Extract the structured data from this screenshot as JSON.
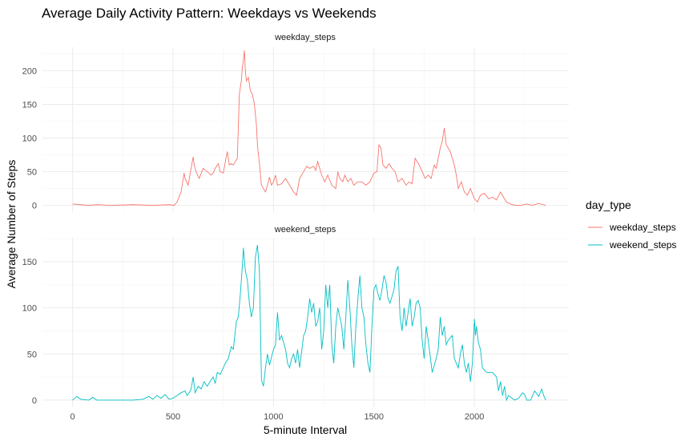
{
  "chart_data": {
    "type": "line",
    "title": "Average Daily Activity Pattern: Weekdays vs Weekends",
    "xlabel": "5-minute Interval",
    "ylabel": "Average Number of Steps",
    "xlim": [
      -150,
      2470
    ],
    "x_ticks": [
      0,
      500,
      1000,
      1500,
      2000
    ],
    "grid": true,
    "legend": {
      "title": "day_type",
      "position": "right",
      "items": [
        {
          "label": "weekday_steps",
          "color": "#F8766D"
        },
        {
          "label": "weekend_steps",
          "color": "#00BFC4"
        }
      ]
    },
    "panels": [
      {
        "strip": "weekday_steps",
        "color": "#F8766D",
        "ylim": [
          -10,
          235
        ],
        "y_ticks": [
          0,
          50,
          100,
          150,
          200
        ],
        "points": [
          [
            0,
            2
          ],
          [
            40,
            1
          ],
          [
            80,
            0
          ],
          [
            120,
            1
          ],
          [
            200,
            0
          ],
          [
            300,
            1
          ],
          [
            400,
            0
          ],
          [
            480,
            1
          ],
          [
            505,
            0
          ],
          [
            520,
            5
          ],
          [
            540,
            20
          ],
          [
            555,
            48
          ],
          [
            560,
            40
          ],
          [
            575,
            30
          ],
          [
            590,
            55
          ],
          [
            600,
            72
          ],
          [
            605,
            60
          ],
          [
            615,
            50
          ],
          [
            630,
            40
          ],
          [
            650,
            55
          ],
          [
            670,
            50
          ],
          [
            690,
            45
          ],
          [
            700,
            48
          ],
          [
            710,
            55
          ],
          [
            725,
            62
          ],
          [
            735,
            50
          ],
          [
            750,
            48
          ],
          [
            770,
            80
          ],
          [
            780,
            60
          ],
          [
            790,
            62
          ],
          [
            800,
            60
          ],
          [
            810,
            65
          ],
          [
            820,
            70
          ],
          [
            830,
            165
          ],
          [
            840,
            185
          ],
          [
            845,
            205
          ],
          [
            850,
            215
          ],
          [
            855,
            230
          ],
          [
            860,
            200
          ],
          [
            865,
            185
          ],
          [
            875,
            190
          ],
          [
            885,
            170
          ],
          [
            895,
            165
          ],
          [
            905,
            150
          ],
          [
            915,
            120
          ],
          [
            920,
            90
          ],
          [
            930,
            62
          ],
          [
            940,
            30
          ],
          [
            950,
            25
          ],
          [
            960,
            20
          ],
          [
            970,
            30
          ],
          [
            980,
            42
          ],
          [
            990,
            30
          ],
          [
            1000,
            35
          ],
          [
            1010,
            45
          ],
          [
            1020,
            30
          ],
          [
            1040,
            32
          ],
          [
            1060,
            40
          ],
          [
            1080,
            30
          ],
          [
            1100,
            20
          ],
          [
            1115,
            15
          ],
          [
            1130,
            40
          ],
          [
            1150,
            50
          ],
          [
            1165,
            58
          ],
          [
            1180,
            55
          ],
          [
            1200,
            58
          ],
          [
            1210,
            52
          ],
          [
            1220,
            65
          ],
          [
            1230,
            55
          ],
          [
            1240,
            45
          ],
          [
            1255,
            35
          ],
          [
            1270,
            45
          ],
          [
            1290,
            30
          ],
          [
            1310,
            25
          ],
          [
            1320,
            50
          ],
          [
            1330,
            40
          ],
          [
            1345,
            35
          ],
          [
            1355,
            45
          ],
          [
            1370,
            35
          ],
          [
            1385,
            40
          ],
          [
            1400,
            30
          ],
          [
            1420,
            35
          ],
          [
            1440,
            35
          ],
          [
            1460,
            30
          ],
          [
            1480,
            35
          ],
          [
            1500,
            48
          ],
          [
            1515,
            50
          ],
          [
            1525,
            90
          ],
          [
            1535,
            85
          ],
          [
            1545,
            60
          ],
          [
            1560,
            55
          ],
          [
            1575,
            62
          ],
          [
            1590,
            55
          ],
          [
            1605,
            50
          ],
          [
            1620,
            35
          ],
          [
            1640,
            40
          ],
          [
            1660,
            30
          ],
          [
            1675,
            35
          ],
          [
            1690,
            32
          ],
          [
            1705,
            70
          ],
          [
            1715,
            65
          ],
          [
            1725,
            60
          ],
          [
            1740,
            50
          ],
          [
            1755,
            40
          ],
          [
            1770,
            45
          ],
          [
            1785,
            40
          ],
          [
            1800,
            60
          ],
          [
            1810,
            55
          ],
          [
            1820,
            70
          ],
          [
            1830,
            85
          ],
          [
            1840,
            95
          ],
          [
            1850,
            115
          ],
          [
            1860,
            90
          ],
          [
            1870,
            85
          ],
          [
            1880,
            80
          ],
          [
            1890,
            70
          ],
          [
            1900,
            60
          ],
          [
            1910,
            45
          ],
          [
            1920,
            25
          ],
          [
            1935,
            35
          ],
          [
            1950,
            20
          ],
          [
            1965,
            15
          ],
          [
            1980,
            25
          ],
          [
            2000,
            10
          ],
          [
            2015,
            5
          ],
          [
            2030,
            15
          ],
          [
            2050,
            18
          ],
          [
            2070,
            10
          ],
          [
            2090,
            12
          ],
          [
            2110,
            8
          ],
          [
            2130,
            20
          ],
          [
            2145,
            12
          ],
          [
            2160,
            5
          ],
          [
            2180,
            2
          ],
          [
            2200,
            0
          ],
          [
            2230,
            0
          ],
          [
            2260,
            2
          ],
          [
            2290,
            0
          ],
          [
            2320,
            3
          ],
          [
            2340,
            1
          ],
          [
            2355,
            0
          ]
        ]
      },
      {
        "strip": "weekend_steps",
        "color": "#00BFC4",
        "ylim": [
          -7,
          176
        ],
        "y_ticks": [
          0,
          50,
          100,
          150
        ],
        "points": [
          [
            0,
            0
          ],
          [
            20,
            4
          ],
          [
            40,
            1
          ],
          [
            80,
            0
          ],
          [
            100,
            3
          ],
          [
            120,
            0
          ],
          [
            200,
            0
          ],
          [
            300,
            0
          ],
          [
            350,
            1
          ],
          [
            380,
            4
          ],
          [
            400,
            1
          ],
          [
            420,
            5
          ],
          [
            440,
            2
          ],
          [
            460,
            6
          ],
          [
            480,
            1
          ],
          [
            500,
            2
          ],
          [
            520,
            5
          ],
          [
            540,
            8
          ],
          [
            560,
            10
          ],
          [
            570,
            5
          ],
          [
            580,
            8
          ],
          [
            590,
            12
          ],
          [
            600,
            25
          ],
          [
            610,
            8
          ],
          [
            625,
            15
          ],
          [
            640,
            12
          ],
          [
            655,
            20
          ],
          [
            670,
            15
          ],
          [
            690,
            22
          ],
          [
            700,
            25
          ],
          [
            710,
            18
          ],
          [
            720,
            30
          ],
          [
            735,
            28
          ],
          [
            750,
            35
          ],
          [
            760,
            40
          ],
          [
            775,
            45
          ],
          [
            790,
            58
          ],
          [
            800,
            55
          ],
          [
            815,
            85
          ],
          [
            825,
            90
          ],
          [
            835,
            115
          ],
          [
            845,
            145
          ],
          [
            850,
            165
          ],
          [
            860,
            140
          ],
          [
            870,
            130
          ],
          [
            880,
            105
          ],
          [
            890,
            90
          ],
          [
            900,
            100
          ],
          [
            910,
            155
          ],
          [
            920,
            168
          ],
          [
            930,
            140
          ],
          [
            940,
            22
          ],
          [
            950,
            15
          ],
          [
            960,
            35
          ],
          [
            970,
            50
          ],
          [
            980,
            38
          ],
          [
            1000,
            55
          ],
          [
            1010,
            60
          ],
          [
            1020,
            95
          ],
          [
            1030,
            65
          ],
          [
            1040,
            70
          ],
          [
            1060,
            55
          ],
          [
            1070,
            40
          ],
          [
            1080,
            35
          ],
          [
            1090,
            45
          ],
          [
            1100,
            50
          ],
          [
            1110,
            40
          ],
          [
            1120,
            55
          ],
          [
            1130,
            35
          ],
          [
            1150,
            70
          ],
          [
            1160,
            75
          ],
          [
            1170,
            90
          ],
          [
            1180,
            110
          ],
          [
            1190,
            95
          ],
          [
            1200,
            105
          ],
          [
            1210,
            80
          ],
          [
            1220,
            85
          ],
          [
            1230,
            100
          ],
          [
            1240,
            55
          ],
          [
            1250,
            75
          ],
          [
            1260,
            125
          ],
          [
            1270,
            100
          ],
          [
            1280,
            125
          ],
          [
            1290,
            60
          ],
          [
            1300,
            40
          ],
          [
            1310,
            80
          ],
          [
            1320,
            100
          ],
          [
            1330,
            90
          ],
          [
            1340,
            80
          ],
          [
            1350,
            55
          ],
          [
            1360,
            90
          ],
          [
            1370,
            130
          ],
          [
            1380,
            100
          ],
          [
            1390,
            60
          ],
          [
            1400,
            35
          ],
          [
            1410,
            80
          ],
          [
            1420,
            110
          ],
          [
            1430,
            135
          ],
          [
            1440,
            100
          ],
          [
            1450,
            90
          ],
          [
            1460,
            60
          ],
          [
            1470,
            40
          ],
          [
            1480,
            30
          ],
          [
            1490,
            80
          ],
          [
            1500,
            120
          ],
          [
            1510,
            125
          ],
          [
            1520,
            115
          ],
          [
            1530,
            108
          ],
          [
            1540,
            120
          ],
          [
            1550,
            135
          ],
          [
            1560,
            128
          ],
          [
            1570,
            110
          ],
          [
            1580,
            105
          ],
          [
            1600,
            120
          ],
          [
            1610,
            140
          ],
          [
            1620,
            145
          ],
          [
            1630,
            90
          ],
          [
            1640,
            75
          ],
          [
            1650,
            100
          ],
          [
            1660,
            80
          ],
          [
            1670,
            95
          ],
          [
            1680,
            110
          ],
          [
            1690,
            80
          ],
          [
            1700,
            90
          ],
          [
            1710,
            105
          ],
          [
            1720,
            108
          ],
          [
            1730,
            100
          ],
          [
            1740,
            65
          ],
          [
            1750,
            45
          ],
          [
            1760,
            80
          ],
          [
            1770,
            65
          ],
          [
            1790,
            30
          ],
          [
            1810,
            45
          ],
          [
            1820,
            55
          ],
          [
            1830,
            90
          ],
          [
            1840,
            70
          ],
          [
            1850,
            80
          ],
          [
            1860,
            60
          ],
          [
            1870,
            65
          ],
          [
            1890,
            70
          ],
          [
            1900,
            45
          ],
          [
            1910,
            40
          ],
          [
            1920,
            35
          ],
          [
            1930,
            50
          ],
          [
            1940,
            60
          ],
          [
            1950,
            40
          ],
          [
            1960,
            30
          ],
          [
            1970,
            40
          ],
          [
            1980,
            20
          ],
          [
            1990,
            40
          ],
          [
            2000,
            88
          ],
          [
            2005,
            70
          ],
          [
            2010,
            80
          ],
          [
            2020,
            62
          ],
          [
            2030,
            55
          ],
          [
            2040,
            35
          ],
          [
            2060,
            30
          ],
          [
            2070,
            30
          ],
          [
            2090,
            30
          ],
          [
            2110,
            25
          ],
          [
            2120,
            10
          ],
          [
            2130,
            20
          ],
          [
            2140,
            5
          ],
          [
            2150,
            15
          ],
          [
            2160,
            0
          ],
          [
            2170,
            5
          ],
          [
            2200,
            0
          ],
          [
            2220,
            2
          ],
          [
            2240,
            8
          ],
          [
            2250,
            6
          ],
          [
            2260,
            0
          ],
          [
            2280,
            0
          ],
          [
            2300,
            10
          ],
          [
            2320,
            4
          ],
          [
            2335,
            12
          ],
          [
            2345,
            5
          ],
          [
            2355,
            0
          ]
        ]
      }
    ]
  }
}
